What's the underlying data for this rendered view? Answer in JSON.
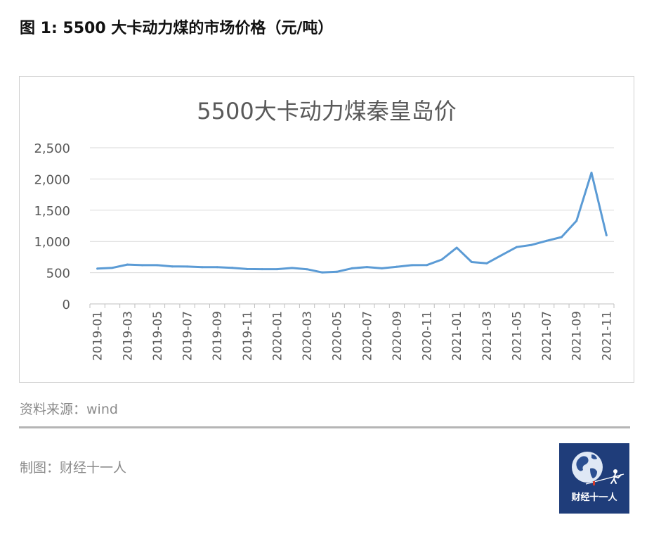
{
  "figure": {
    "title": "图 1: 5500 大卡动力煤的市场价格（元/吨）",
    "source": "资料来源：wind",
    "credit": "制图：财经十一人",
    "logo_text": "财经十一人"
  },
  "colors": {
    "line": "#5b9bd5",
    "logo_bg": "#1f3d7a",
    "text_muted": "#8a8a8a"
  },
  "chart_data": {
    "type": "line",
    "title": "5500大卡动力煤秦皇岛价",
    "xlabel": "",
    "ylabel": "",
    "ylim": [
      0,
      2500
    ],
    "yticks": [
      "0",
      "500",
      "1,000",
      "1,500",
      "2,000",
      "2,500"
    ],
    "grid": true,
    "legend": "none",
    "x": [
      "2019-01",
      "2019-02",
      "2019-03",
      "2019-04",
      "2019-05",
      "2019-06",
      "2019-07",
      "2019-08",
      "2019-09",
      "2019-10",
      "2019-11",
      "2019-12",
      "2020-01",
      "2020-02",
      "2020-03",
      "2020-04",
      "2020-05",
      "2020-06",
      "2020-07",
      "2020-08",
      "2020-09",
      "2020-10",
      "2020-11",
      "2020-12",
      "2021-01",
      "2021-02",
      "2021-03",
      "2021-04",
      "2021-05",
      "2021-06",
      "2021-07",
      "2021-08",
      "2021-09",
      "2021-10",
      "2021-11"
    ],
    "xtick_labels": [
      "2019-01",
      "2019-03",
      "2019-05",
      "2019-07",
      "2019-09",
      "2019-11",
      "2020-01",
      "2020-03",
      "2020-05",
      "2020-07",
      "2020-09",
      "2020-11",
      "2021-01",
      "2021-03",
      "2021-05",
      "2021-07",
      "2021-09",
      "2021-11"
    ],
    "series": [
      {
        "values": [
          565,
          578,
          630,
          620,
          620,
          600,
          598,
          588,
          588,
          578,
          558,
          556,
          556,
          575,
          555,
          505,
          515,
          570,
          590,
          570,
          595,
          620,
          622,
          710,
          900,
          670,
          650,
          780,
          910,
          945,
          1010,
          1070,
          1330,
          2100,
          1100
        ]
      }
    ]
  }
}
